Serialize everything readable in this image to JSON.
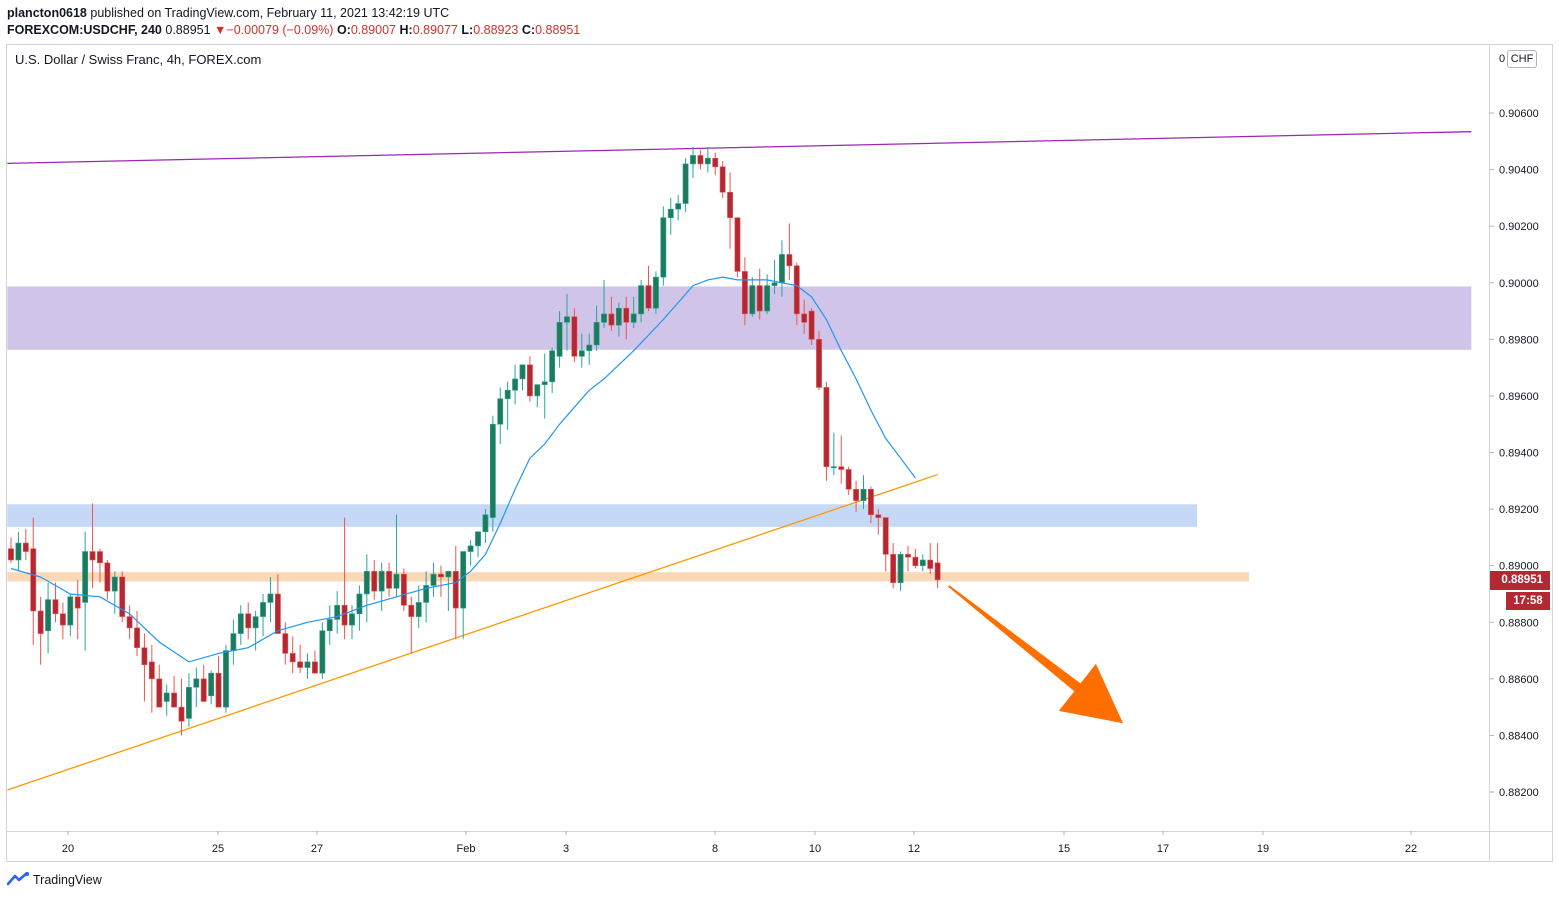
{
  "header": {
    "publisher": "plancton0618",
    "published_text": "published on TradingView.com, February 11, 2021 13:42:19 UTC",
    "symbol_interval": "FOREXCOM:USDCHF, 240",
    "last_price": "0.88951",
    "change": "−0.00079 (−0.09%)",
    "open_label": "O:",
    "open": "0.89007",
    "high_label": "H:",
    "high": "0.89077",
    "low_label": "L:",
    "low": "0.88923",
    "close_label": "C:",
    "close": "0.88951"
  },
  "chart_title": "U.S. Dollar / Swiss Franc, 4h, FOREX.com",
  "currency_badge": "CHF",
  "price_tag": "0.88951",
  "countdown": "17:58",
  "footer_brand": "TradingView",
  "colors": {
    "up": "#26a69a",
    "down": "#ef5350",
    "up_body": "#1f7a5c",
    "down_body": "#b22833",
    "ma": "#2196f3",
    "resistance_line": "#9c27b0",
    "trendline": "#ff9800",
    "purple_zone": "#d1c4e9",
    "blue_zone": "#c5d9f7",
    "orange_zone": "#fbd9b7",
    "arrow": "#ff6f00",
    "price_tag": "#b22833"
  },
  "chart_data": {
    "type": "candlestick",
    "title": "U.S. Dollar / Swiss Franc, 4h, FOREX.com",
    "ylim": [
      0.8812,
      0.9075
    ],
    "y_ticks": [
      "0.90600",
      "0.90400",
      "0.90200",
      "0.90000",
      "0.89800",
      "0.89600",
      "0.89400",
      "0.89200",
      "0.89000",
      "0.88800",
      "0.88600",
      "0.88400",
      "0.88200"
    ],
    "x_ticks": [
      "20",
      "25",
      "27",
      "Feb",
      "3",
      "8",
      "10",
      "12",
      "15",
      "17",
      "19",
      "22"
    ],
    "grid": false,
    "candles": [
      {
        "o": 0.8906,
        "h": 0.891,
        "l": 0.8901,
        "c": 0.8902
      },
      {
        "o": 0.8902,
        "h": 0.8912,
        "l": 0.8898,
        "c": 0.8908
      },
      {
        "o": 0.8908,
        "h": 0.8913,
        "l": 0.8902,
        "c": 0.8905
      },
      {
        "o": 0.8906,
        "h": 0.8917,
        "l": 0.8872,
        "c": 0.8884
      },
      {
        "o": 0.8884,
        "h": 0.8889,
        "l": 0.8865,
        "c": 0.8876
      },
      {
        "o": 0.8877,
        "h": 0.8894,
        "l": 0.8869,
        "c": 0.8888
      },
      {
        "o": 0.8888,
        "h": 0.8894,
        "l": 0.888,
        "c": 0.8883
      },
      {
        "o": 0.8883,
        "h": 0.8887,
        "l": 0.8874,
        "c": 0.8879
      },
      {
        "o": 0.8879,
        "h": 0.889,
        "l": 0.8875,
        "c": 0.8889
      },
      {
        "o": 0.8889,
        "h": 0.8895,
        "l": 0.8874,
        "c": 0.8885
      },
      {
        "o": 0.8887,
        "h": 0.8912,
        "l": 0.887,
        "c": 0.8905
      },
      {
        "o": 0.8905,
        "h": 0.8922,
        "l": 0.8892,
        "c": 0.8902
      },
      {
        "o": 0.8905,
        "h": 0.8906,
        "l": 0.8894,
        "c": 0.8901
      },
      {
        "o": 0.8901,
        "h": 0.8902,
        "l": 0.8888,
        "c": 0.8891
      },
      {
        "o": 0.8891,
        "h": 0.8898,
        "l": 0.8883,
        "c": 0.8896
      },
      {
        "o": 0.8896,
        "h": 0.8898,
        "l": 0.888,
        "c": 0.8882
      },
      {
        "o": 0.8882,
        "h": 0.8886,
        "l": 0.8874,
        "c": 0.8878
      },
      {
        "o": 0.8878,
        "h": 0.8884,
        "l": 0.8868,
        "c": 0.8871
      },
      {
        "o": 0.8871,
        "h": 0.8876,
        "l": 0.8852,
        "c": 0.8865
      },
      {
        "o": 0.8866,
        "h": 0.8872,
        "l": 0.8848,
        "c": 0.886
      },
      {
        "o": 0.886,
        "h": 0.8865,
        "l": 0.885,
        "c": 0.885
      },
      {
        "o": 0.8852,
        "h": 0.8858,
        "l": 0.8847,
        "c": 0.8855
      },
      {
        "o": 0.8855,
        "h": 0.8861,
        "l": 0.885,
        "c": 0.885
      },
      {
        "o": 0.885,
        "h": 0.886,
        "l": 0.884,
        "c": 0.8845
      },
      {
        "o": 0.8846,
        "h": 0.8862,
        "l": 0.8843,
        "c": 0.8857
      },
      {
        "o": 0.8857,
        "h": 0.8864,
        "l": 0.885,
        "c": 0.886
      },
      {
        "o": 0.886,
        "h": 0.8865,
        "l": 0.8852,
        "c": 0.8852
      },
      {
        "o": 0.8854,
        "h": 0.8863,
        "l": 0.8851,
        "c": 0.8862
      },
      {
        "o": 0.8862,
        "h": 0.8868,
        "l": 0.885,
        "c": 0.885
      },
      {
        "o": 0.885,
        "h": 0.8872,
        "l": 0.8848,
        "c": 0.887
      },
      {
        "o": 0.887,
        "h": 0.8881,
        "l": 0.8865,
        "c": 0.8876
      },
      {
        "o": 0.8876,
        "h": 0.8886,
        "l": 0.8872,
        "c": 0.8883
      },
      {
        "o": 0.8883,
        "h": 0.8887,
        "l": 0.8874,
        "c": 0.8878
      },
      {
        "o": 0.8878,
        "h": 0.8884,
        "l": 0.887,
        "c": 0.8882
      },
      {
        "o": 0.8882,
        "h": 0.889,
        "l": 0.8875,
        "c": 0.8887
      },
      {
        "o": 0.8887,
        "h": 0.8896,
        "l": 0.888,
        "c": 0.889
      },
      {
        "o": 0.889,
        "h": 0.8897,
        "l": 0.8876,
        "c": 0.8876
      },
      {
        "o": 0.8876,
        "h": 0.888,
        "l": 0.8865,
        "c": 0.8869
      },
      {
        "o": 0.8869,
        "h": 0.8875,
        "l": 0.8862,
        "c": 0.8866
      },
      {
        "o": 0.8866,
        "h": 0.8872,
        "l": 0.8862,
        "c": 0.8864
      },
      {
        "o": 0.8864,
        "h": 0.8869,
        "l": 0.886,
        "c": 0.8866
      },
      {
        "o": 0.8866,
        "h": 0.887,
        "l": 0.8862,
        "c": 0.8862
      },
      {
        "o": 0.8862,
        "h": 0.888,
        "l": 0.886,
        "c": 0.8877
      },
      {
        "o": 0.8877,
        "h": 0.8886,
        "l": 0.8872,
        "c": 0.8881
      },
      {
        "o": 0.8881,
        "h": 0.8891,
        "l": 0.8876,
        "c": 0.8886
      },
      {
        "o": 0.8886,
        "h": 0.8917,
        "l": 0.8874,
        "c": 0.8879
      },
      {
        "o": 0.8879,
        "h": 0.8886,
        "l": 0.8874,
        "c": 0.8883
      },
      {
        "o": 0.8883,
        "h": 0.8893,
        "l": 0.8877,
        "c": 0.889
      },
      {
        "o": 0.889,
        "h": 0.8904,
        "l": 0.888,
        "c": 0.8898
      },
      {
        "o": 0.8898,
        "h": 0.8902,
        "l": 0.8888,
        "c": 0.8891
      },
      {
        "o": 0.8891,
        "h": 0.8901,
        "l": 0.8884,
        "c": 0.8898
      },
      {
        "o": 0.8898,
        "h": 0.8901,
        "l": 0.8889,
        "c": 0.8892
      },
      {
        "o": 0.8892,
        "h": 0.8918,
        "l": 0.8889,
        "c": 0.8897
      },
      {
        "o": 0.8897,
        "h": 0.8899,
        "l": 0.8884,
        "c": 0.8886
      },
      {
        "o": 0.8886,
        "h": 0.8889,
        "l": 0.8869,
        "c": 0.8882
      },
      {
        "o": 0.8882,
        "h": 0.8893,
        "l": 0.8878,
        "c": 0.8887
      },
      {
        "o": 0.8887,
        "h": 0.8898,
        "l": 0.888,
        "c": 0.8893
      },
      {
        "o": 0.8893,
        "h": 0.8901,
        "l": 0.8889,
        "c": 0.8897
      },
      {
        "o": 0.8897,
        "h": 0.89,
        "l": 0.8889,
        "c": 0.8896
      },
      {
        "o": 0.8896,
        "h": 0.8898,
        "l": 0.8884,
        "c": 0.8898
      },
      {
        "o": 0.8898,
        "h": 0.8907,
        "l": 0.8874,
        "c": 0.8885
      },
      {
        "o": 0.8885,
        "h": 0.8903,
        "l": 0.8874,
        "c": 0.8905
      },
      {
        "o": 0.8905,
        "h": 0.8909,
        "l": 0.89,
        "c": 0.8907
      },
      {
        "o": 0.8907,
        "h": 0.8912,
        "l": 0.8903,
        "c": 0.8912
      },
      {
        "o": 0.8912,
        "h": 0.892,
        "l": 0.8908,
        "c": 0.8918
      },
      {
        "o": 0.8917,
        "h": 0.8953,
        "l": 0.8912,
        "c": 0.895
      },
      {
        "o": 0.895,
        "h": 0.8963,
        "l": 0.8943,
        "c": 0.8959
      },
      {
        "o": 0.8959,
        "h": 0.8965,
        "l": 0.8948,
        "c": 0.8962
      },
      {
        "o": 0.8962,
        "h": 0.8971,
        "l": 0.8957,
        "c": 0.8966
      },
      {
        "o": 0.8966,
        "h": 0.8971,
        "l": 0.8962,
        "c": 0.8971
      },
      {
        "o": 0.8971,
        "h": 0.8974,
        "l": 0.8958,
        "c": 0.896
      },
      {
        "o": 0.896,
        "h": 0.8964,
        "l": 0.8956,
        "c": 0.8964
      },
      {
        "o": 0.8964,
        "h": 0.8975,
        "l": 0.8952,
        "c": 0.8965
      },
      {
        "o": 0.8965,
        "h": 0.8977,
        "l": 0.8961,
        "c": 0.8976
      },
      {
        "o": 0.8974,
        "h": 0.899,
        "l": 0.897,
        "c": 0.8986
      },
      {
        "o": 0.8986,
        "h": 0.8996,
        "l": 0.8976,
        "c": 0.8988
      },
      {
        "o": 0.8988,
        "h": 0.8991,
        "l": 0.8972,
        "c": 0.8974
      },
      {
        "o": 0.8974,
        "h": 0.8982,
        "l": 0.897,
        "c": 0.8976
      },
      {
        "o": 0.8976,
        "h": 0.8982,
        "l": 0.8971,
        "c": 0.8978
      },
      {
        "o": 0.8978,
        "h": 0.8992,
        "l": 0.8976,
        "c": 0.8986
      },
      {
        "o": 0.8986,
        "h": 0.9001,
        "l": 0.8984,
        "c": 0.8989
      },
      {
        "o": 0.8989,
        "h": 0.8995,
        "l": 0.8983,
        "c": 0.8985
      },
      {
        "o": 0.8985,
        "h": 0.8993,
        "l": 0.8981,
        "c": 0.8991
      },
      {
        "o": 0.8991,
        "h": 0.8995,
        "l": 0.898,
        "c": 0.8986
      },
      {
        "o": 0.8986,
        "h": 0.8995,
        "l": 0.8984,
        "c": 0.8989
      },
      {
        "o": 0.8989,
        "h": 0.9001,
        "l": 0.8986,
        "c": 0.8999
      },
      {
        "o": 0.8999,
        "h": 0.9006,
        "l": 0.899,
        "c": 0.8991
      },
      {
        "o": 0.8991,
        "h": 0.9004,
        "l": 0.8989,
        "c": 0.9002
      },
      {
        "o": 0.9002,
        "h": 0.9027,
        "l": 0.8999,
        "c": 0.9023
      },
      {
        "o": 0.9023,
        "h": 0.903,
        "l": 0.9017,
        "c": 0.9026
      },
      {
        "o": 0.9026,
        "h": 0.9031,
        "l": 0.9022,
        "c": 0.9028
      },
      {
        "o": 0.9028,
        "h": 0.9044,
        "l": 0.9025,
        "c": 0.9042
      },
      {
        "o": 0.9042,
        "h": 0.9048,
        "l": 0.9037,
        "c": 0.9045
      },
      {
        "o": 0.9045,
        "h": 0.9047,
        "l": 0.904,
        "c": 0.9042
      },
      {
        "o": 0.9042,
        "h": 0.9048,
        "l": 0.9039,
        "c": 0.9044
      },
      {
        "o": 0.9044,
        "h": 0.9046,
        "l": 0.9038,
        "c": 0.9041
      },
      {
        "o": 0.9041,
        "h": 0.9043,
        "l": 0.903,
        "c": 0.9032
      },
      {
        "o": 0.9032,
        "h": 0.9039,
        "l": 0.9012,
        "c": 0.9023
      },
      {
        "o": 0.9023,
        "h": 0.9023,
        "l": 0.9002,
        "c": 0.9004
      },
      {
        "o": 0.9004,
        "h": 0.9009,
        "l": 0.8985,
        "c": 0.8989
      },
      {
        "o": 0.8989,
        "h": 0.9002,
        "l": 0.8988,
        "c": 0.8999
      },
      {
        "o": 0.8999,
        "h": 0.9005,
        "l": 0.8987,
        "c": 0.899
      },
      {
        "o": 0.899,
        "h": 0.9003,
        "l": 0.8989,
        "c": 0.8999
      },
      {
        "o": 0.8999,
        "h": 0.9008,
        "l": 0.8996,
        "c": 0.9
      },
      {
        "o": 0.9,
        "h": 0.9015,
        "l": 0.8995,
        "c": 0.901
      },
      {
        "o": 0.901,
        "h": 0.9021,
        "l": 0.9001,
        "c": 0.9006
      },
      {
        "o": 0.9006,
        "h": 0.9007,
        "l": 0.8985,
        "c": 0.8989
      },
      {
        "o": 0.8989,
        "h": 0.8994,
        "l": 0.8982,
        "c": 0.8986
      },
      {
        "o": 0.899,
        "h": 0.8991,
        "l": 0.8978,
        "c": 0.898
      },
      {
        "o": 0.898,
        "h": 0.8983,
        "l": 0.8962,
        "c": 0.8963
      },
      {
        "o": 0.8963,
        "h": 0.8965,
        "l": 0.893,
        "c": 0.8935
      },
      {
        "o": 0.8935,
        "h": 0.8947,
        "l": 0.8932,
        "c": 0.8935
      },
      {
        "o": 0.8935,
        "h": 0.8946,
        "l": 0.8929,
        "c": 0.8934
      },
      {
        "o": 0.8934,
        "h": 0.8935,
        "l": 0.8925,
        "c": 0.8927
      },
      {
        "o": 0.8927,
        "h": 0.893,
        "l": 0.8919,
        "c": 0.8923
      },
      {
        "o": 0.8923,
        "h": 0.8932,
        "l": 0.892,
        "c": 0.8927
      },
      {
        "o": 0.8927,
        "h": 0.8928,
        "l": 0.8915,
        "c": 0.8918
      },
      {
        "o": 0.8918,
        "h": 0.892,
        "l": 0.8911,
        "c": 0.8917
      },
      {
        "o": 0.8917,
        "h": 0.8917,
        "l": 0.8898,
        "c": 0.8904
      },
      {
        "o": 0.8904,
        "h": 0.8908,
        "l": 0.8892,
        "c": 0.8894
      },
      {
        "o": 0.8894,
        "h": 0.8905,
        "l": 0.8891,
        "c": 0.8904
      },
      {
        "o": 0.8904,
        "h": 0.8907,
        "l": 0.8898,
        "c": 0.8903
      },
      {
        "o": 0.8903,
        "h": 0.8906,
        "l": 0.8899,
        "c": 0.89
      },
      {
        "o": 0.89,
        "h": 0.8904,
        "l": 0.8898,
        "c": 0.8902
      },
      {
        "o": 0.8902,
        "h": 0.8908,
        "l": 0.8897,
        "c": 0.8899
      },
      {
        "o": 0.8901,
        "h": 0.8908,
        "l": 0.8892,
        "c": 0.8895
      }
    ],
    "moving_average": {
      "name": "",
      "points": [
        [
          0,
          0.8899
        ],
        [
          4,
          0.8896
        ],
        [
          8,
          0.889
        ],
        [
          12,
          0.8889
        ],
        [
          16,
          0.8883
        ],
        [
          20,
          0.8873
        ],
        [
          24,
          0.8866
        ],
        [
          28,
          0.8869
        ],
        [
          32,
          0.8871
        ],
        [
          36,
          0.8877
        ],
        [
          40,
          0.888
        ],
        [
          44,
          0.8882
        ],
        [
          48,
          0.8886
        ],
        [
          52,
          0.8889
        ],
        [
          56,
          0.8892
        ],
        [
          60,
          0.8894
        ],
        [
          62,
          0.8898
        ],
        [
          64,
          0.8904
        ],
        [
          66,
          0.8915
        ],
        [
          68,
          0.8927
        ],
        [
          70,
          0.8938
        ],
        [
          72,
          0.8943
        ],
        [
          74,
          0.895
        ],
        [
          76,
          0.8956
        ],
        [
          78,
          0.8962
        ],
        [
          80,
          0.8966
        ],
        [
          84,
          0.8976
        ],
        [
          88,
          0.8987
        ],
        [
          90,
          0.8993
        ],
        [
          92,
          0.8999
        ],
        [
          94,
          0.9001
        ],
        [
          96,
          0.9002
        ],
        [
          98,
          0.9001
        ],
        [
          100,
          0.9001
        ],
        [
          102,
          0.9001
        ],
        [
          104,
          0.9
        ],
        [
          106,
          0.8999
        ],
        [
          108,
          0.8995
        ],
        [
          110,
          0.8987
        ],
        [
          112,
          0.8976
        ],
        [
          114,
          0.8966
        ],
        [
          116,
          0.8955
        ],
        [
          118,
          0.8945
        ],
        [
          120,
          0.8938
        ],
        [
          122,
          0.8931
        ]
      ]
    },
    "resistance_line": {
      "from": [
        -0.5,
        0.90422
      ],
      "to": [
        197,
        0.90534
      ]
    },
    "trendline": {
      "from": [
        -0.5,
        0.88207
      ],
      "to": [
        125,
        0.89322
      ]
    },
    "zones": [
      {
        "name": "purple-zone",
        "y1": 0.89763,
        "y2": 0.89987,
        "x1": -0.5,
        "x2": 197
      },
      {
        "name": "blue-zone",
        "y1": 0.89137,
        "y2": 0.89217,
        "x1": -0.5,
        "x2": 160
      },
      {
        "name": "orange-zone",
        "y1": 0.88944,
        "y2": 0.88977,
        "x1": -0.5,
        "x2": 167
      }
    ],
    "arrow": {
      "from": [
        126.5,
        0.88928
      ],
      "to": [
        150,
        0.88443
      ]
    }
  }
}
